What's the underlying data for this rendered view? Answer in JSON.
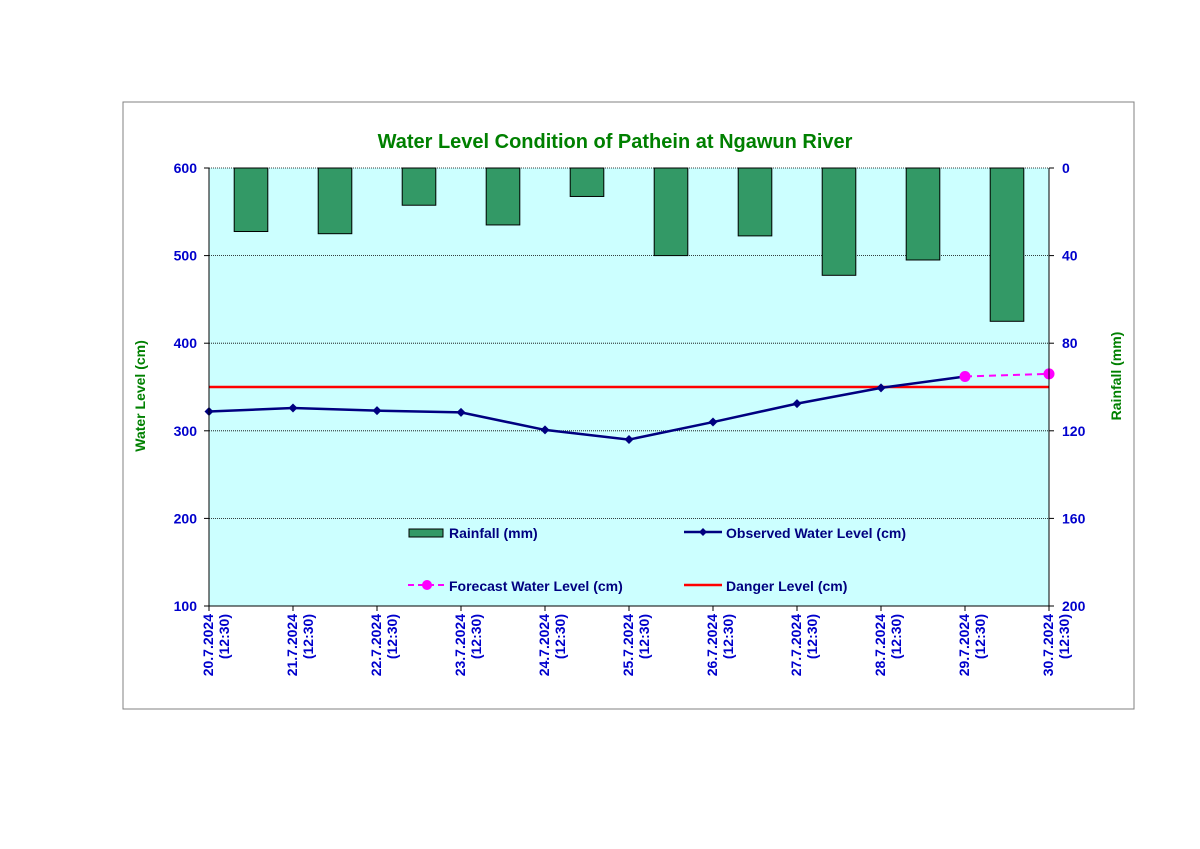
{
  "chart_data": {
    "type": "bar+line",
    "title": "Water Level Condition of Pathein at Ngawun River",
    "ylabel_left": "Water Level (cm)",
    "ylabel_right": "Rainfall (mm)",
    "ylim_left": [
      100,
      600
    ],
    "yticks_left": [
      100,
      200,
      300,
      400,
      500,
      600
    ],
    "ylim_right_inverted": [
      0,
      200
    ],
    "yticks_right": [
      0,
      40,
      80,
      120,
      160,
      200
    ],
    "grid": true,
    "categories": [
      [
        "20.7.2024",
        "(12:30)"
      ],
      [
        "21.7.2024",
        "(12:30)"
      ],
      [
        "22.7.2024",
        "(12:30)"
      ],
      [
        "23.7.2024",
        "(12:30)"
      ],
      [
        "24.7.2024",
        "(12:30)"
      ],
      [
        "25.7.2024",
        "(12:30)"
      ],
      [
        "26.7.2024",
        "(12:30)"
      ],
      [
        "27.7.2024",
        "(12:30)"
      ],
      [
        "28.7.2024",
        "(12:30)"
      ],
      [
        "29.7.2024",
        "(12:30)"
      ],
      [
        "30.7.2024",
        "(12:30)"
      ]
    ],
    "series": [
      {
        "name": "Rainfall (mm)",
        "type": "bar",
        "axis": "right",
        "color": "#339966",
        "values": [
          29,
          30,
          17,
          26,
          13,
          40,
          31,
          49,
          42,
          70,
          null
        ]
      },
      {
        "name": "Observed Water Level (cm)",
        "type": "line",
        "axis": "left",
        "color": "#000080",
        "marker": "diamond",
        "values": [
          322,
          326,
          323,
          321,
          301,
          290,
          310,
          331,
          349,
          362,
          null
        ]
      },
      {
        "name": "Forecast Water Level (cm)",
        "type": "line",
        "axis": "left",
        "color": "#ff00ff",
        "marker": "circle",
        "dashed": true,
        "values": [
          null,
          null,
          null,
          null,
          null,
          null,
          null,
          null,
          null,
          362,
          365
        ]
      },
      {
        "name": "Danger Level (cm)",
        "type": "line",
        "axis": "left",
        "color": "#ff0000",
        "values": [
          350,
          350,
          350,
          350,
          350,
          350,
          350,
          350,
          350,
          350,
          350
        ]
      }
    ],
    "colors": {
      "title": "#008000",
      "axis_title": "#008000",
      "tick": "#0000cc",
      "plot_background": "#ccffff",
      "frame": "#808080"
    },
    "legend_placement": "inside-bottom-center"
  }
}
